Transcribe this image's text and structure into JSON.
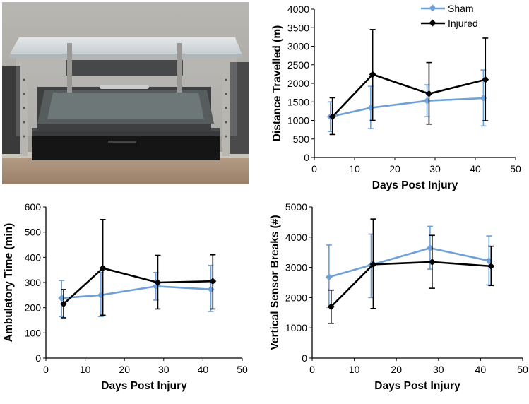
{
  "colors": {
    "sham": "#6fa0d8",
    "injured": "#000000"
  },
  "legend": {
    "sham": "Sham",
    "injured": "Injured",
    "placement": "top-right"
  },
  "chart_data": [
    {
      "type": "line",
      "ylabel": "Distance Travelled (m)",
      "xlabel": "Days Post Injury",
      "xlim": [
        0,
        50
      ],
      "ylim": [
        0,
        4000
      ],
      "xticks": [
        "0",
        "10",
        "20",
        "30",
        "40",
        "50"
      ],
      "yticks": [
        "0",
        "500",
        "1000",
        "1500",
        "2000",
        "2500",
        "3000",
        "3500",
        "4000"
      ],
      "series": [
        {
          "name": "Sham",
          "x": [
            4,
            14,
            28,
            42
          ],
          "y": [
            1100,
            1340,
            1530,
            1600
          ],
          "err_low": [
            700,
            780,
            1100,
            850
          ],
          "err_high": [
            1500,
            1920,
            1960,
            2360
          ]
        },
        {
          "name": "Injured",
          "x": [
            4.5,
            14.5,
            28.5,
            42.5
          ],
          "y": [
            1100,
            2240,
            1720,
            2100
          ],
          "err_low": [
            620,
            1000,
            900,
            990
          ],
          "err_high": [
            1610,
            3450,
            2560,
            3220
          ]
        }
      ]
    },
    {
      "type": "line",
      "ylabel": "Ambulatory Time (min)",
      "xlabel": "Days Post Injury",
      "xlim": [
        0,
        50
      ],
      "ylim": [
        0,
        600
      ],
      "xticks": [
        "0",
        "10",
        "20",
        "30",
        "40",
        "50"
      ],
      "yticks": [
        "0",
        "100",
        "200",
        "300",
        "400",
        "500",
        "600"
      ],
      "series": [
        {
          "name": "Sham",
          "x": [
            4,
            14,
            28,
            42
          ],
          "y": [
            238,
            250,
            285,
            273
          ],
          "err_low": [
            165,
            165,
            230,
            185
          ],
          "err_high": [
            308,
            340,
            340,
            368
          ]
        },
        {
          "name": "Injured",
          "x": [
            4.5,
            14.5,
            28.5,
            42.5
          ],
          "y": [
            215,
            357,
            300,
            305
          ],
          "err_low": [
            160,
            170,
            195,
            195
          ],
          "err_high": [
            272,
            550,
            408,
            410
          ]
        }
      ]
    },
    {
      "type": "line",
      "ylabel": "Vertical Sensor Breaks (#)",
      "xlabel": "Days Post Injury",
      "xlim": [
        0,
        50
      ],
      "ylim": [
        0,
        5000
      ],
      "xticks": [
        "0",
        "10",
        "20",
        "30",
        "40",
        "50"
      ],
      "yticks": [
        "0",
        "1000",
        "2000",
        "3000",
        "4000",
        "5000"
      ],
      "series": [
        {
          "name": "Sham",
          "x": [
            4,
            14,
            28,
            42
          ],
          "y": [
            2680,
            3080,
            3640,
            3220
          ],
          "err_low": [
            1680,
            2000,
            2940,
            2420
          ],
          "err_high": [
            3740,
            4100,
            4360,
            4040
          ]
        },
        {
          "name": "Injured",
          "x": [
            4.5,
            14.5,
            28.5,
            42.5
          ],
          "y": [
            1700,
            3100,
            3180,
            3040
          ],
          "err_low": [
            1150,
            1640,
            2310,
            2400
          ],
          "err_high": [
            2250,
            4600,
            4060,
            3700
          ]
        }
      ]
    }
  ]
}
